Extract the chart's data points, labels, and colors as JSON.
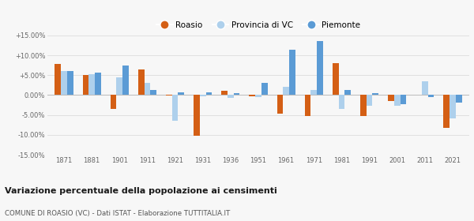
{
  "years": [
    1871,
    1881,
    1901,
    1911,
    1921,
    1931,
    1936,
    1951,
    1961,
    1971,
    1981,
    1991,
    2001,
    2011,
    2021
  ],
  "roasio": [
    7.8,
    5.1,
    -3.5,
    6.5,
    -0.2,
    -10.2,
    1.0,
    -0.3,
    -4.7,
    -5.2,
    8.0,
    -5.2,
    -1.6,
    0.1,
    -8.3
  ],
  "provincia_vc": [
    6.1,
    5.2,
    4.5,
    3.0,
    -6.5,
    -0.3,
    -0.8,
    -0.5,
    2.0,
    1.2,
    -3.5,
    -2.7,
    -2.7,
    3.5,
    -5.8
  ],
  "piemonte": [
    6.0,
    5.6,
    7.5,
    1.2,
    0.7,
    0.7,
    0.5,
    3.1,
    11.3,
    13.5,
    1.2,
    0.5,
    -2.3,
    -0.5,
    -2.0
  ],
  "color_roasio": "#d45f15",
  "color_provincia": "#aed0ec",
  "color_piemonte": "#5b9bd5",
  "title": "Variazione percentuale della popolazione ai censimenti",
  "subtitle": "COMUNE DI ROASIO (VC) - Dati ISTAT - Elaborazione TUTTITALIA.IT",
  "ylim": [
    -15.0,
    15.0
  ],
  "yticks": [
    -15.0,
    -10.0,
    -5.0,
    0.0,
    5.0,
    10.0,
    15.0
  ],
  "bg_color": "#f7f7f7",
  "grid_color": "#e0e0e0"
}
